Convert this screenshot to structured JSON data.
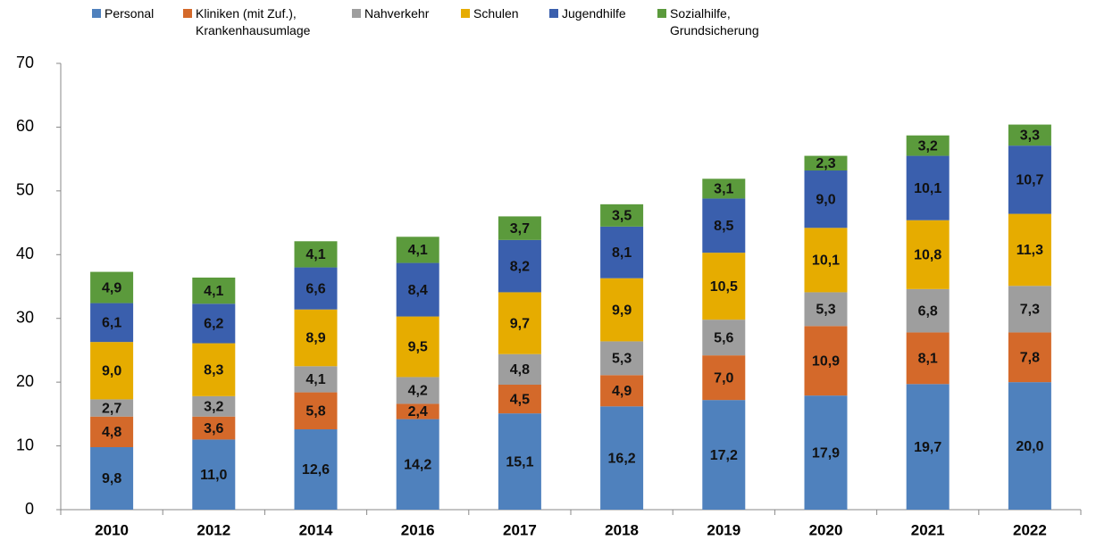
{
  "chart_data": {
    "type": "stacked_bar",
    "categories": [
      "2010",
      "2012",
      "2014",
      "2016",
      "2017",
      "2018",
      "2019",
      "2020",
      "2021",
      "2022"
    ],
    "series": [
      {
        "name": "Personal",
        "color": "#4f81bd",
        "values": [
          9.8,
          11.0,
          12.6,
          14.2,
          15.1,
          16.2,
          17.2,
          17.9,
          19.7,
          20.0
        ],
        "value_labels": [
          "9,8",
          "11,0",
          "12,6",
          "14,2",
          "15,1",
          "16,2",
          "17,2",
          "17,9",
          "19,7",
          "20,0"
        ]
      },
      {
        "name": "Kliniken (mit Zuf.), Krankenhausumlage",
        "color": "#d4692a",
        "values": [
          4.8,
          3.6,
          5.8,
          2.4,
          4.5,
          4.9,
          7.0,
          10.9,
          8.1,
          7.8
        ],
        "value_labels": [
          "4,8",
          "3,6",
          "5,8",
          "2,4",
          "4,5",
          "4,9",
          "7,0",
          "10,9",
          "8,1",
          "7,8"
        ]
      },
      {
        "name": "Nahverkehr",
        "color": "#9e9e9e",
        "values": [
          2.7,
          3.2,
          4.1,
          4.2,
          4.8,
          5.3,
          5.6,
          5.3,
          6.8,
          7.3
        ],
        "value_labels": [
          "2,7",
          "3,2",
          "4,1",
          "4,2",
          "4,8",
          "5,3",
          "5,6",
          "5,3",
          "6,8",
          "7,3"
        ]
      },
      {
        "name": "Schulen",
        "color": "#e6ac00",
        "values": [
          9.0,
          8.3,
          8.9,
          9.5,
          9.7,
          9.9,
          10.5,
          10.1,
          10.8,
          11.3
        ],
        "value_labels": [
          "9,0",
          "8,3",
          "8,9",
          "9,5",
          "9,7",
          "9,9",
          "10,5",
          "10,1",
          "10,8",
          "11,3"
        ]
      },
      {
        "name": "Jugendhilfe",
        "color": "#3a5fad",
        "values": [
          6.1,
          6.2,
          6.6,
          8.4,
          8.2,
          8.1,
          8.5,
          9.0,
          10.1,
          10.7
        ],
        "value_labels": [
          "6,1",
          "6,2",
          "6,6",
          "8,4",
          "8,2",
          "8,1",
          "8,5",
          "9,0",
          "10,1",
          "10,7"
        ]
      },
      {
        "name": "Sozialhilfe, Grundsicherung",
        "color": "#5b9a3c",
        "values": [
          4.9,
          4.1,
          4.1,
          4.1,
          3.7,
          3.5,
          3.1,
          2.3,
          3.2,
          3.3
        ],
        "value_labels": [
          "4,9",
          "4,1",
          "4,1",
          "4,1",
          "3,7",
          "3,5",
          "3,1",
          "2,3",
          "3,2",
          "3,3"
        ]
      }
    ],
    "ylim": [
      0,
      70
    ],
    "yticks": [
      0,
      10,
      20,
      30,
      40,
      50,
      60,
      70
    ],
    "legend": "top"
  }
}
